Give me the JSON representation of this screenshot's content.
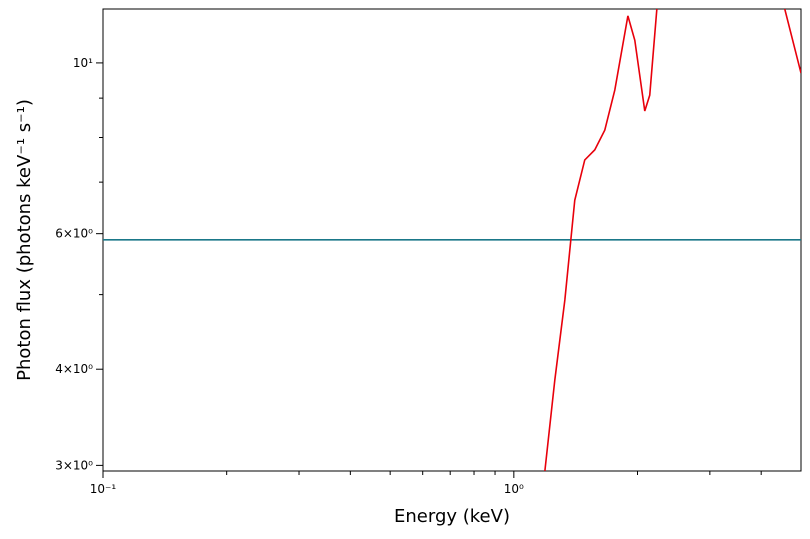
{
  "chart_data": {
    "type": "line",
    "xlabel": "Energy (keV)",
    "ylabel": "Photon flux (photons keV⁻¹ s⁻¹)",
    "xscale": "log",
    "yscale": "log",
    "xlim": [
      0.1,
      5
    ],
    "ylim": [
      2.95,
      11.75
    ],
    "xticks": [
      {
        "value": 0.1,
        "label": "10⁻¹"
      },
      {
        "value": 1,
        "label": "10⁰"
      }
    ],
    "xminor_ticks": [
      0.2,
      0.3,
      0.4,
      0.5,
      0.6,
      0.7,
      0.8,
      0.9,
      2,
      3,
      4
    ],
    "yticks": [
      {
        "value": 3,
        "label": "3×10⁰"
      },
      {
        "value": 4,
        "label": "4×10⁰"
      },
      {
        "value": 6,
        "label": "6×10⁰"
      },
      {
        "value": 10,
        "label": "10¹"
      }
    ],
    "yminor_ticks": [
      5,
      7,
      8,
      9
    ],
    "series": [
      {
        "color": "#1a7889",
        "x": [
          0.1,
          5
        ],
        "values": [
          5.89,
          5.89
        ]
      },
      {
        "color": "#e8000b",
        "x": [
          1.19,
          1.258,
          1.331,
          1.407,
          1.488,
          1.574,
          1.665,
          1.761,
          1.895,
          1.97,
          2.083,
          2.142,
          2.229,
          null,
          4.565,
          5
        ],
        "values": [
          2.95,
          3.87,
          4.92,
          6.63,
          7.48,
          7.71,
          8.18,
          9.22,
          11.51,
          10.7,
          8.66,
          9.08,
          11.75,
          null,
          11.75,
          9.7
        ]
      }
    ]
  }
}
